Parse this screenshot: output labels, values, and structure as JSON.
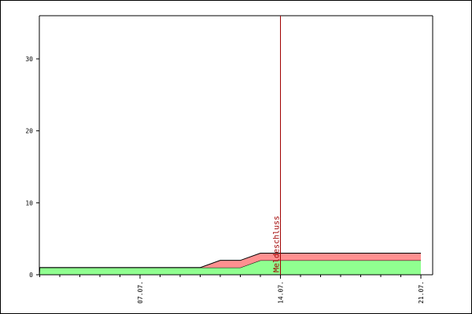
{
  "chart_data": {
    "type": "area",
    "stacked": true,
    "title": "",
    "xlabel": "",
    "ylabel": "",
    "x": [
      "01.07.",
      "02.07.",
      "03.07.",
      "04.07.",
      "05.07.",
      "06.07.",
      "07.07.",
      "08.07.",
      "09.07.",
      "10.07.",
      "11.07.",
      "12.07.",
      "13.07.",
      "14.07.",
      "15.07.",
      "16.07.",
      "17.07.",
      "18.07.",
      "19.07.",
      "20.07.",
      "21.07."
    ],
    "series": [
      {
        "color": "#90ff90",
        "values": [
          0,
          1,
          1,
          1,
          1,
          1,
          1,
          1,
          1,
          1,
          1,
          1,
          2,
          2,
          2,
          2,
          2,
          2,
          2,
          2,
          2
        ]
      },
      {
        "color": "#ff9090",
        "values": [
          0,
          0,
          0,
          0,
          0,
          0,
          0,
          0,
          0,
          0,
          1,
          1,
          1,
          1,
          1,
          1,
          1,
          1,
          1,
          1,
          1
        ]
      }
    ],
    "x_tick_labels": [
      "07.07.",
      "14.07.",
      "21.07."
    ],
    "y_ticks": [
      0,
      10,
      20,
      30
    ],
    "ylim": [
      0,
      36
    ],
    "grid": false,
    "marker": {
      "label": "Meldeschluss",
      "x": "14.07.",
      "color": "#a00000"
    }
  }
}
